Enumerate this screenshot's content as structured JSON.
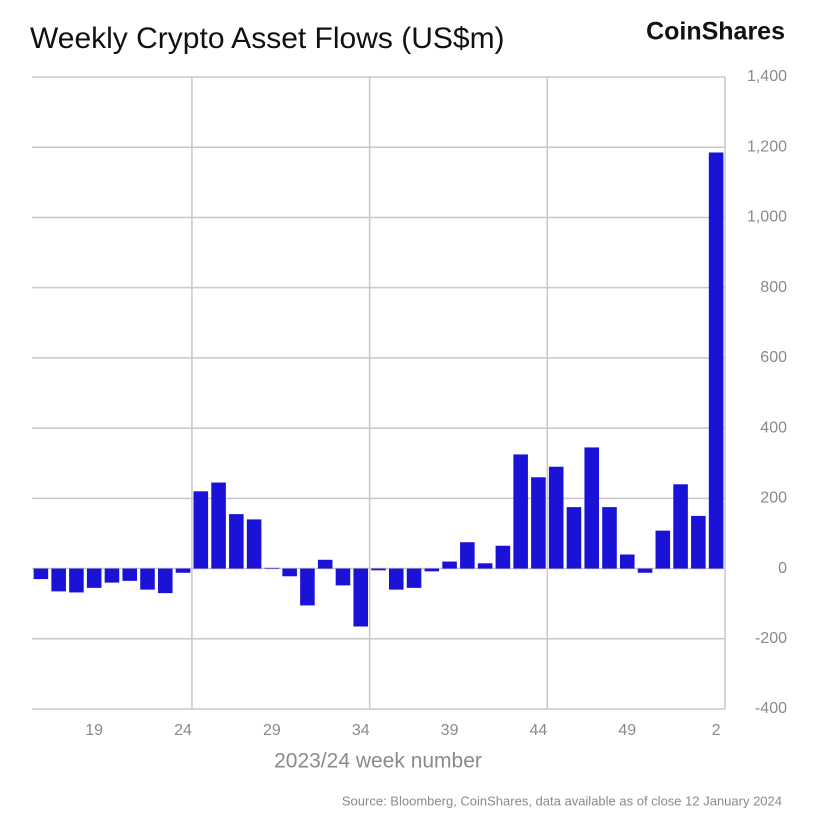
{
  "chart_data": {
    "type": "bar",
    "title": "Weekly Crypto Asset Flows (US$m)",
    "brand": "CoinShares",
    "x_label": "2023/24 week number",
    "source": "Source: Bloomberg, CoinShares, data available as of close 12 January 2024",
    "categories": [
      null,
      null,
      null,
      "19",
      null,
      null,
      null,
      null,
      "24",
      null,
      null,
      null,
      null,
      "29",
      null,
      null,
      null,
      null,
      "34",
      null,
      null,
      null,
      null,
      "39",
      null,
      null,
      null,
      null,
      "44",
      null,
      null,
      null,
      null,
      "49",
      null,
      null,
      null,
      null,
      "2"
    ],
    "values": [
      -30,
      -65,
      -68,
      -55,
      -40,
      -35,
      -60,
      -70,
      -12,
      220,
      245,
      155,
      140,
      2,
      -22,
      -105,
      25,
      -48,
      -165,
      -5,
      -60,
      -55,
      -8,
      20,
      75,
      15,
      65,
      325,
      260,
      290,
      175,
      345,
      175,
      40,
      -12,
      108,
      240,
      150,
      1185
    ],
    "color": "#1a12d6",
    "ylim": [
      -400,
      1400
    ],
    "yticks": [
      -400,
      -200,
      0,
      200,
      400,
      600,
      800,
      {
        "value": 1000,
        "label": "1,000"
      },
      {
        "value": 1200,
        "label": "1,200"
      },
      {
        "value": 1400,
        "label": "1,400"
      }
    ],
    "grid": true
  }
}
